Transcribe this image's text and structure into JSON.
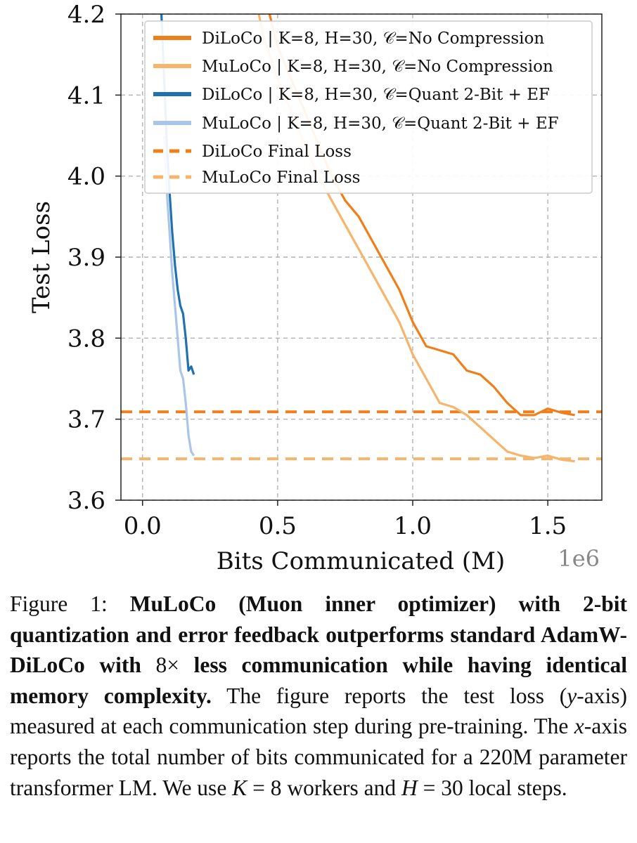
{
  "chart_data": {
    "type": "line",
    "xlabel": "Bits Communicated (M)",
    "ylabel": "Test Loss",
    "x_offset_label": "1e6",
    "xlim": [
      -0.08,
      1.7
    ],
    "ylim": [
      3.6,
      4.2
    ],
    "xticks": [
      0.0,
      0.5,
      1.0,
      1.5
    ],
    "xtick_labels": [
      "0.0",
      "0.5",
      "1.0",
      "1.5"
    ],
    "yticks": [
      3.6,
      3.7,
      3.8,
      3.9,
      4.0,
      4.1,
      4.2
    ],
    "ytick_labels": [
      "3.6",
      "3.7",
      "3.8",
      "3.9",
      "4.0",
      "4.1",
      "4.2"
    ],
    "grid": true,
    "legend_position": "top-right",
    "series": [
      {
        "name": "DiLoCo | K=8, H=30, 𝒞=No Compression",
        "color": "#f07f1a",
        "style": "solid",
        "x": [
          0.47,
          0.5,
          0.55,
          0.6,
          0.65,
          0.7,
          0.75,
          0.8,
          0.85,
          0.9,
          0.95,
          1.0,
          1.05,
          1.1,
          1.15,
          1.2,
          1.25,
          1.3,
          1.35,
          1.4,
          1.45,
          1.5,
          1.55,
          1.6
        ],
        "y": [
          4.2,
          4.16,
          4.12,
          4.08,
          4.04,
          4.0,
          3.97,
          3.95,
          3.92,
          3.89,
          3.86,
          3.82,
          3.79,
          3.785,
          3.78,
          3.76,
          3.755,
          3.74,
          3.72,
          3.705,
          3.705,
          3.713,
          3.708,
          3.705
        ]
      },
      {
        "name": "MuLoCo | K=8, H=30, 𝒞=No Compression",
        "color": "#f7b46b",
        "style": "solid",
        "x": [
          0.43,
          0.45,
          0.5,
          0.55,
          0.6,
          0.65,
          0.7,
          0.75,
          0.8,
          0.85,
          0.9,
          0.95,
          1.0,
          1.05,
          1.1,
          1.15,
          1.2,
          1.25,
          1.3,
          1.35,
          1.4,
          1.45,
          1.5,
          1.55,
          1.6
        ],
        "y": [
          4.2,
          4.17,
          4.12,
          4.08,
          4.04,
          4.0,
          3.97,
          3.94,
          3.91,
          3.88,
          3.85,
          3.82,
          3.78,
          3.75,
          3.72,
          3.715,
          3.705,
          3.69,
          3.675,
          3.66,
          3.655,
          3.652,
          3.655,
          3.65,
          3.648
        ]
      },
      {
        "name": "DiLoCo | K=8, H=30, 𝒞=Quant 2-Bit + EF",
        "color": "#2071b0",
        "style": "solid",
        "x": [
          0.07,
          0.08,
          0.09,
          0.1,
          0.11,
          0.12,
          0.13,
          0.14,
          0.15,
          0.16,
          0.17,
          0.18,
          0.19
        ],
        "y": [
          4.2,
          4.12,
          4.04,
          3.98,
          3.93,
          3.89,
          3.86,
          3.84,
          3.83,
          3.8,
          3.76,
          3.765,
          3.755
        ]
      },
      {
        "name": "MuLoCo | K=8, H=30, 𝒞=Quant 2-Bit + EF",
        "color": "#a9c6e8",
        "style": "solid",
        "x": [
          0.08,
          0.09,
          0.1,
          0.11,
          0.12,
          0.13,
          0.14,
          0.15,
          0.16,
          0.17,
          0.18,
          0.19
        ],
        "y": [
          4.05,
          3.98,
          3.93,
          3.88,
          3.84,
          3.8,
          3.76,
          3.75,
          3.72,
          3.68,
          3.66,
          3.655
        ]
      },
      {
        "name": "DiLoCo Final Loss",
        "color": "#f07f1a",
        "style": "dashed",
        "y_const": 3.709
      },
      {
        "name": "MuLoCo Final Loss",
        "color": "#f7b46b",
        "style": "dashed",
        "y_const": 3.651
      }
    ]
  },
  "caption": {
    "label": "Figure 1:",
    "bold_part1": "MuLoCo (Muon inner optimizer) with 2-bit quantization and error feedback outperforms standard AdamW-DiLoCo with ",
    "bold_math": "8×",
    "bold_part2": " less communication while having identical memory complexity.",
    "text_a": " The figure reports the test loss (",
    "math_y": "y",
    "text_b": "-axis) measured at each communication step during pre-training. The ",
    "math_x": "x",
    "text_c": "-axis reports the total number of bits communicated for a 220M parameter transformer LM. We use ",
    "math_k": "K",
    "text_d": " = 8 workers and ",
    "math_h": "H",
    "text_e": " = 30 local steps."
  }
}
